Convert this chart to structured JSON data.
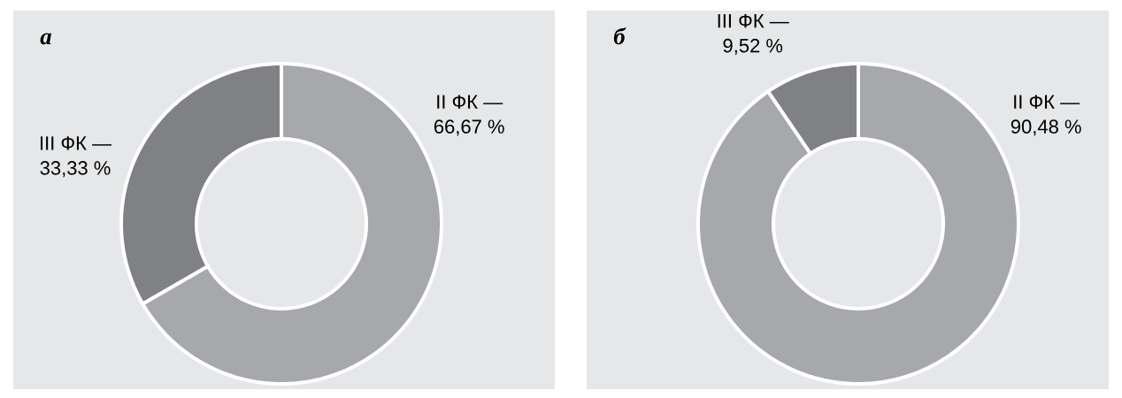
{
  "chart_data": [
    {
      "type": "donut",
      "title": "*а*",
      "categories": [
        "II ФК —",
        "III ФК —"
      ],
      "values": [
        66.67,
        33.33
      ],
      "value_labels": [
        "66,67 %",
        "33,33 %"
      ],
      "colors": [
        "#a7a8ac",
        "#808185"
      ]
    },
    {
      "type": "donut",
      "title": "*б*",
      "categories": [
        "II ФК —",
        "III ФК —"
      ],
      "values": [
        90.48,
        9.52
      ],
      "value_labels": [
        "90,48 %",
        "9,52 %"
      ],
      "colors": [
        "#a7a8ac",
        "#808185"
      ]
    }
  ]
}
